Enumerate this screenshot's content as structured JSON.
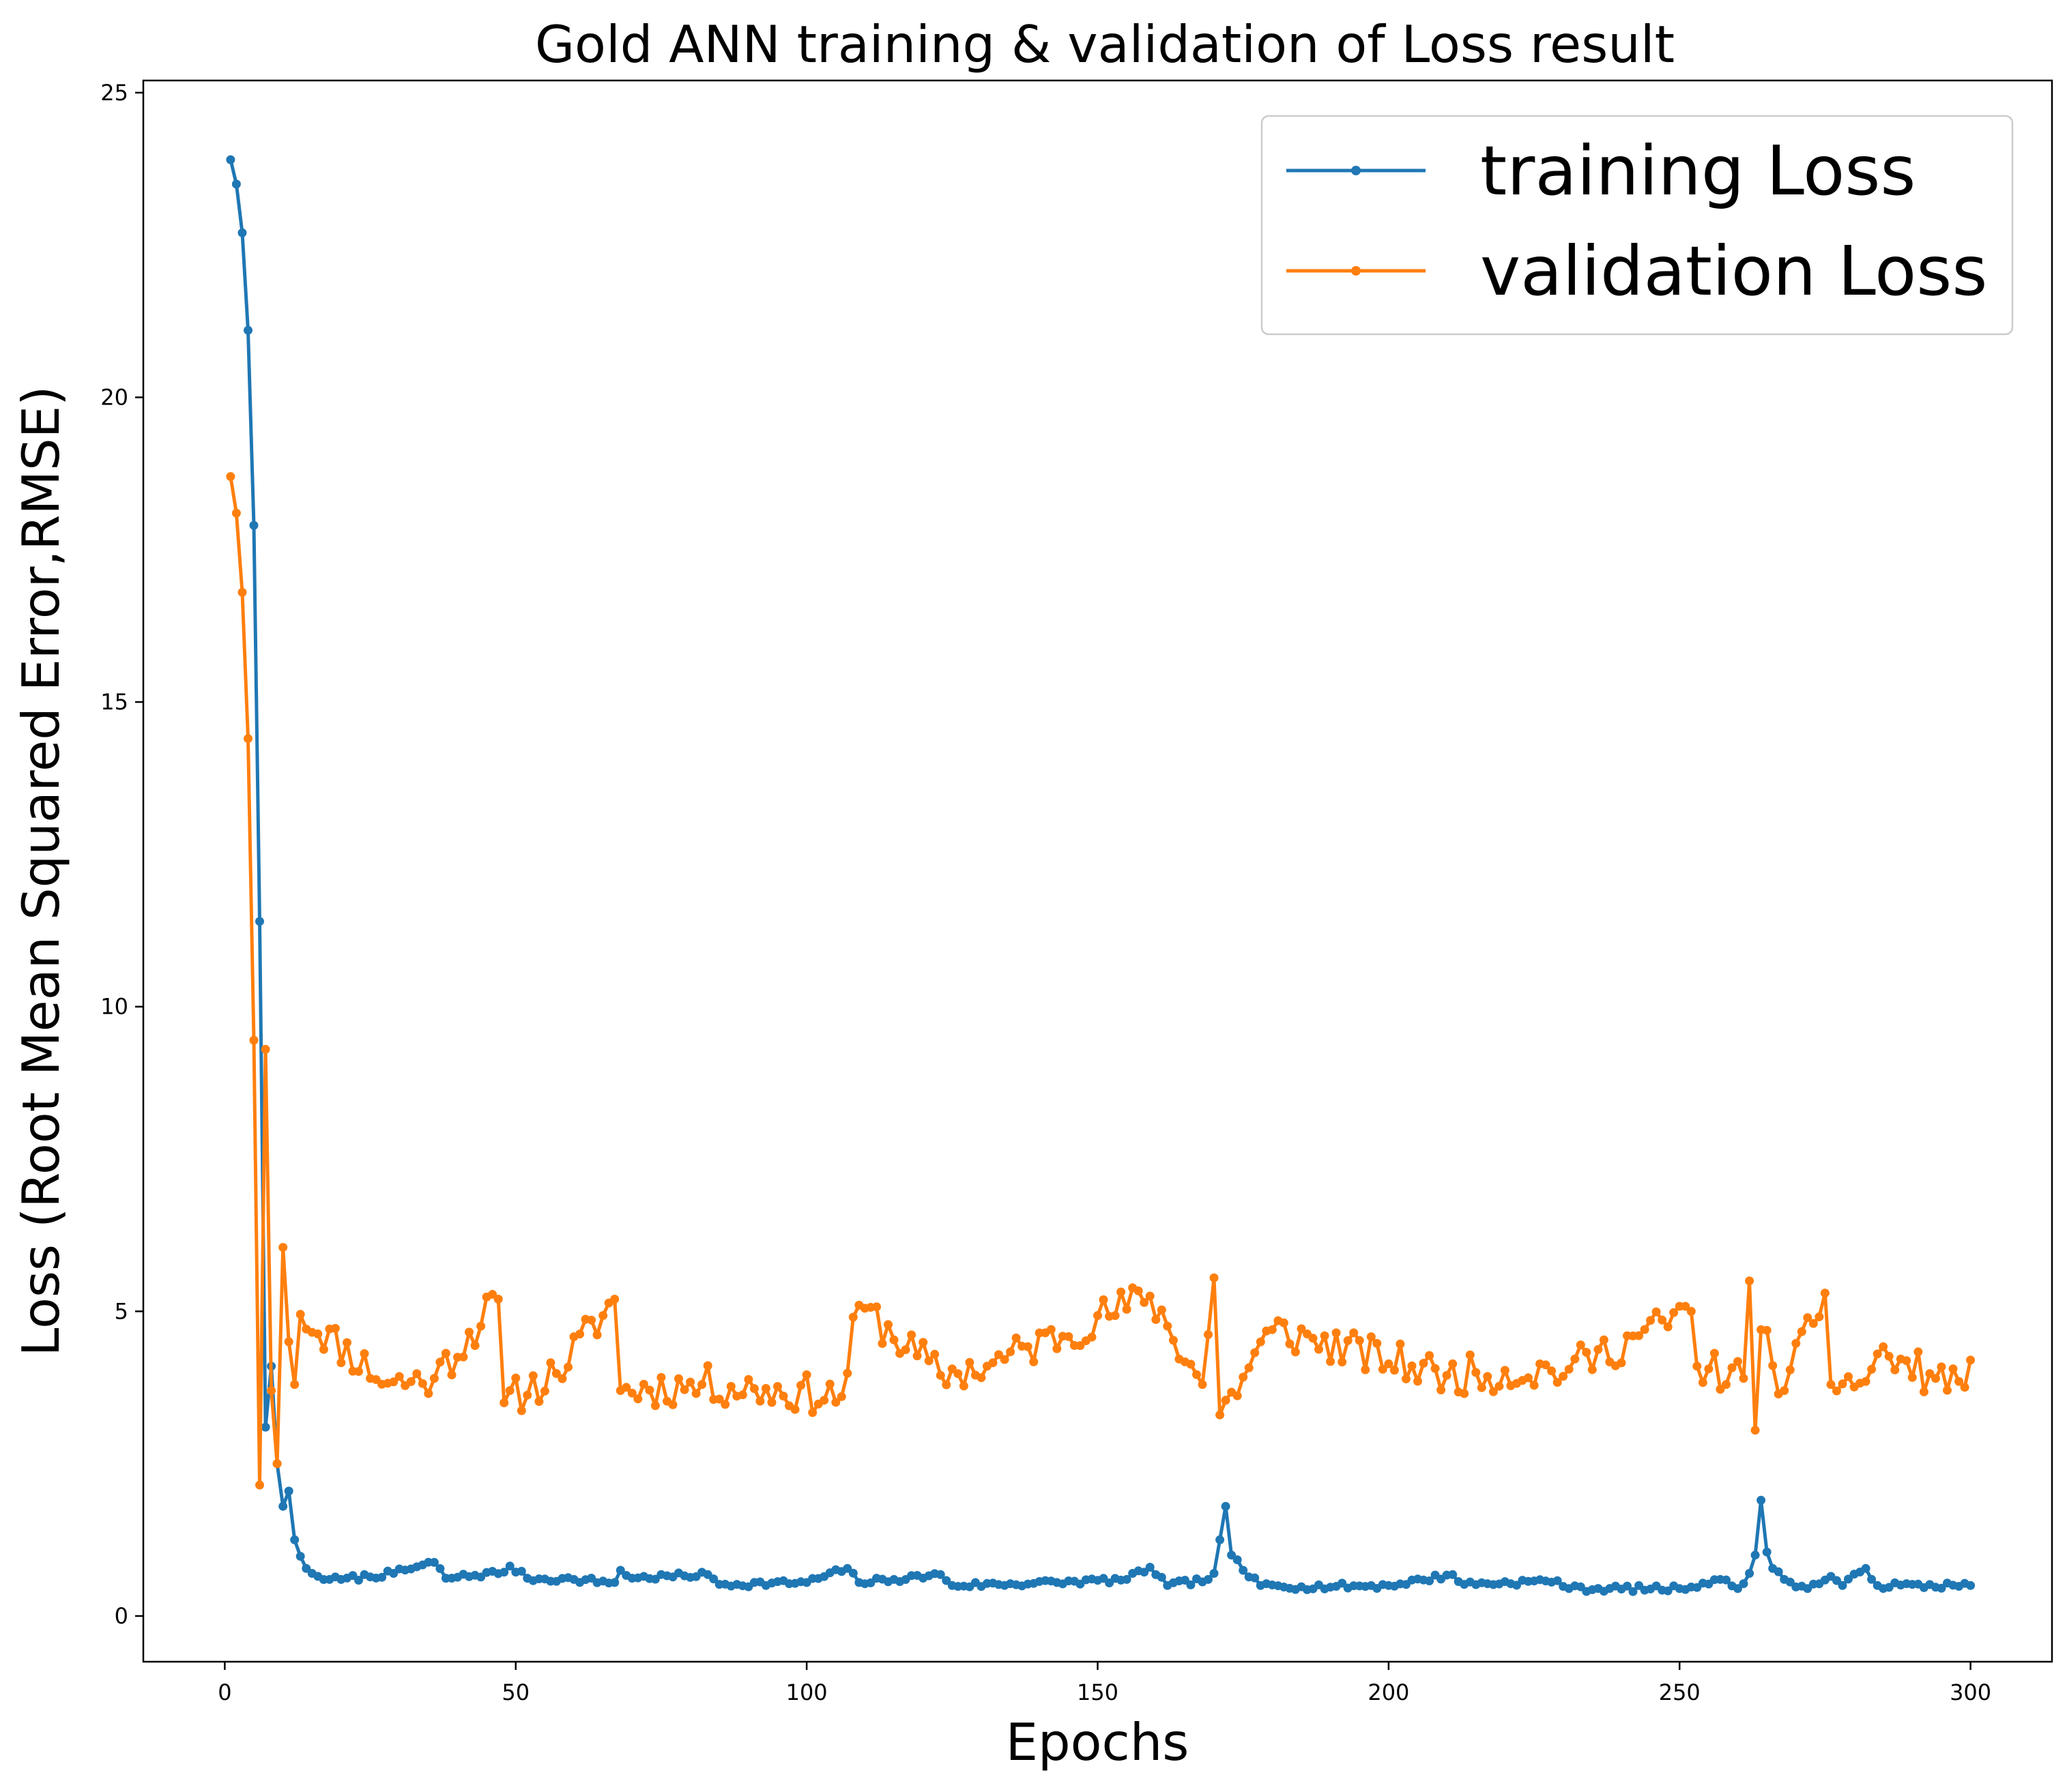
{
  "chart_data": {
    "type": "line",
    "title": "Gold ANN training & validation of Loss result",
    "xlabel": "Epochs",
    "ylabel": "Loss (Root Mean Squared Error,RMSE)",
    "xlim": [
      -14,
      314
    ],
    "ylim": [
      -0.75,
      25.2
    ],
    "xticks": [
      0,
      50,
      100,
      150,
      200,
      250,
      300
    ],
    "yticks": [
      0,
      5,
      10,
      15,
      20,
      25
    ],
    "grid": false,
    "legend_position": "top-right",
    "series": [
      {
        "name": "training Loss",
        "color": "#1f77b4",
        "keypoints": [
          [
            1,
            23.9
          ],
          [
            2,
            23.5
          ],
          [
            3,
            22.7
          ],
          [
            4,
            21.1
          ],
          [
            5,
            17.9
          ],
          [
            6,
            11.4
          ],
          [
            7,
            3.1
          ],
          [
            8,
            4.1
          ],
          [
            9,
            2.5
          ],
          [
            10,
            1.8
          ],
          [
            11,
            2.05
          ],
          [
            12,
            1.25
          ],
          [
            13,
            0.98
          ],
          [
            14,
            0.78
          ],
          [
            15,
            0.7
          ],
          [
            16,
            0.65
          ],
          [
            18,
            0.6
          ],
          [
            20,
            0.6
          ],
          [
            29,
            0.7
          ],
          [
            36,
            0.88
          ],
          [
            38,
            0.62
          ],
          [
            48,
            0.72
          ],
          [
            49,
            0.82
          ],
          [
            52,
            0.62
          ],
          [
            60,
            0.6
          ],
          [
            67,
            0.55
          ],
          [
            68,
            0.75
          ],
          [
            70,
            0.62
          ],
          [
            83,
            0.68
          ],
          [
            85,
            0.52
          ],
          [
            100,
            0.55
          ],
          [
            107,
            0.78
          ],
          [
            109,
            0.55
          ],
          [
            115,
            0.6
          ],
          [
            123,
            0.68
          ],
          [
            125,
            0.5
          ],
          [
            143,
            0.55
          ],
          [
            155,
            0.6
          ],
          [
            159,
            0.8
          ],
          [
            162,
            0.5
          ],
          [
            169,
            0.6
          ],
          [
            170,
            0.7
          ],
          [
            171,
            1.25
          ],
          [
            172,
            1.8
          ],
          [
            173,
            1.0
          ],
          [
            175,
            0.75
          ],
          [
            178,
            0.5
          ],
          [
            185,
            0.48
          ],
          [
            200,
            0.5
          ],
          [
            211,
            0.68
          ],
          [
            213,
            0.52
          ],
          [
            229,
            0.58
          ],
          [
            231,
            0.45
          ],
          [
            250,
            0.45
          ],
          [
            257,
            0.6
          ],
          [
            260,
            0.45
          ],
          [
            262,
            0.7
          ],
          [
            263,
            1.0
          ],
          [
            264,
            1.9
          ],
          [
            265,
            1.05
          ],
          [
            266,
            0.78
          ],
          [
            268,
            0.6
          ],
          [
            272,
            0.45
          ],
          [
            276,
            0.65
          ],
          [
            278,
            0.5
          ],
          [
            282,
            0.78
          ],
          [
            284,
            0.5
          ],
          [
            300,
            0.5
          ]
        ]
      },
      {
        "name": "validation Loss",
        "color": "#ff7f0e",
        "keypoints": [
          [
            1,
            18.7
          ],
          [
            2,
            18.1
          ],
          [
            3,
            16.8
          ],
          [
            4,
            14.4
          ],
          [
            5,
            9.45
          ],
          [
            6,
            2.15
          ],
          [
            7,
            9.3
          ],
          [
            8,
            3.7
          ],
          [
            9,
            2.5
          ],
          [
            10,
            6.05
          ],
          [
            11,
            4.5
          ],
          [
            12,
            3.8
          ],
          [
            13,
            4.95
          ],
          [
            28,
            3.82
          ],
          [
            36,
            3.9
          ],
          [
            47,
            5.2
          ],
          [
            48,
            3.5
          ],
          [
            57,
            3.98
          ],
          [
            67,
            5.2
          ],
          [
            68,
            3.7
          ],
          [
            82,
            3.8
          ],
          [
            106,
            3.6
          ],
          [
            109,
            5.1
          ],
          [
            123,
            3.95
          ],
          [
            131,
            4.1
          ],
          [
            159,
            5.25
          ],
          [
            168,
            3.8
          ],
          [
            170,
            5.55
          ],
          [
            171,
            3.3
          ],
          [
            180,
            4.7
          ],
          [
            210,
            3.95
          ],
          [
            231,
            4.05
          ],
          [
            252,
            5.0
          ],
          [
            253,
            4.1
          ],
          [
            261,
            3.9
          ],
          [
            262,
            5.5
          ],
          [
            263,
            3.05
          ],
          [
            264,
            4.7
          ],
          [
            268,
            3.7
          ],
          [
            275,
            5.3
          ],
          [
            276,
            3.8
          ],
          [
            282,
            3.85
          ],
          [
            284,
            4.3
          ],
          [
            294,
            3.9
          ],
          [
            298,
            3.85
          ],
          [
            300,
            4.2
          ]
        ]
      }
    ]
  }
}
